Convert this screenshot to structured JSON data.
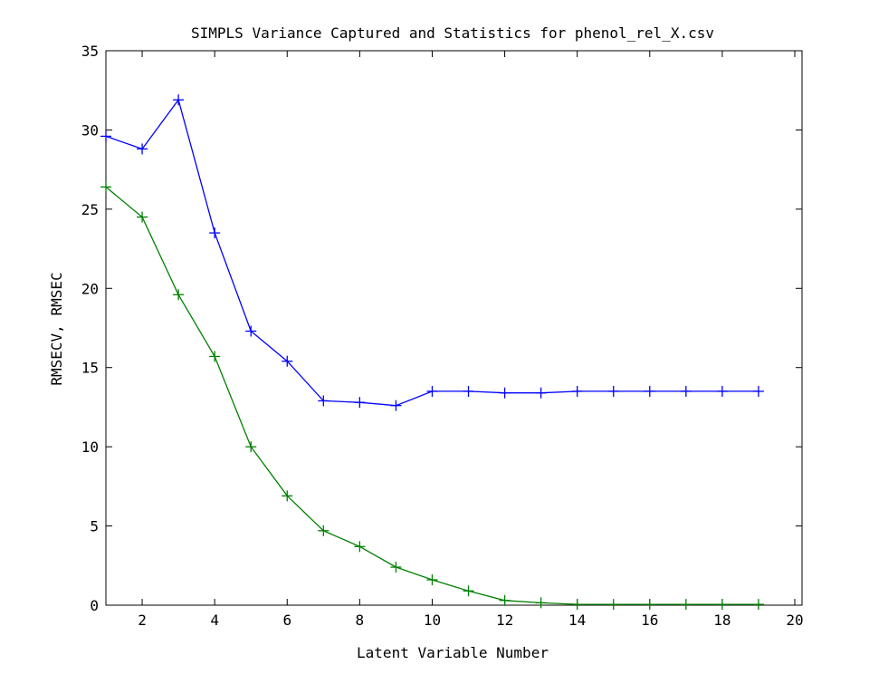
{
  "chart_data": {
    "type": "line",
    "title": "SIMPLS Variance Captured and Statistics for phenol_rel_X.csv",
    "xlabel": "Latent Variable Number",
    "ylabel": "RMSECV, RMSEC",
    "xlim": [
      1,
      20.2
    ],
    "ylim": [
      0,
      35
    ],
    "x_ticks": [
      2,
      4,
      6,
      8,
      10,
      12,
      14,
      16,
      18,
      20
    ],
    "y_ticks": [
      0,
      5,
      10,
      15,
      20,
      25,
      30,
      35
    ],
    "x": [
      1,
      2,
      3,
      4,
      5,
      6,
      7,
      8,
      9,
      10,
      11,
      12,
      13,
      14,
      15,
      16,
      17,
      18,
      19
    ],
    "series": [
      {
        "color": "#0000ff",
        "marker": "+",
        "values": [
          29.6,
          28.8,
          31.9,
          23.5,
          17.3,
          15.4,
          12.9,
          12.8,
          12.6,
          13.5,
          13.5,
          13.4,
          13.4,
          13.5,
          13.5,
          13.5,
          13.5,
          13.5,
          13.5
        ]
      },
      {
        "color": "#008000",
        "marker": "+",
        "values": [
          26.4,
          24.5,
          19.6,
          15.7,
          10.0,
          6.9,
          4.7,
          3.7,
          2.4,
          1.6,
          0.9,
          0.3,
          0.15,
          0.05,
          0.05,
          0.05,
          0.05,
          0.05,
          0.05
        ]
      }
    ],
    "grid": false,
    "legend": "none"
  }
}
